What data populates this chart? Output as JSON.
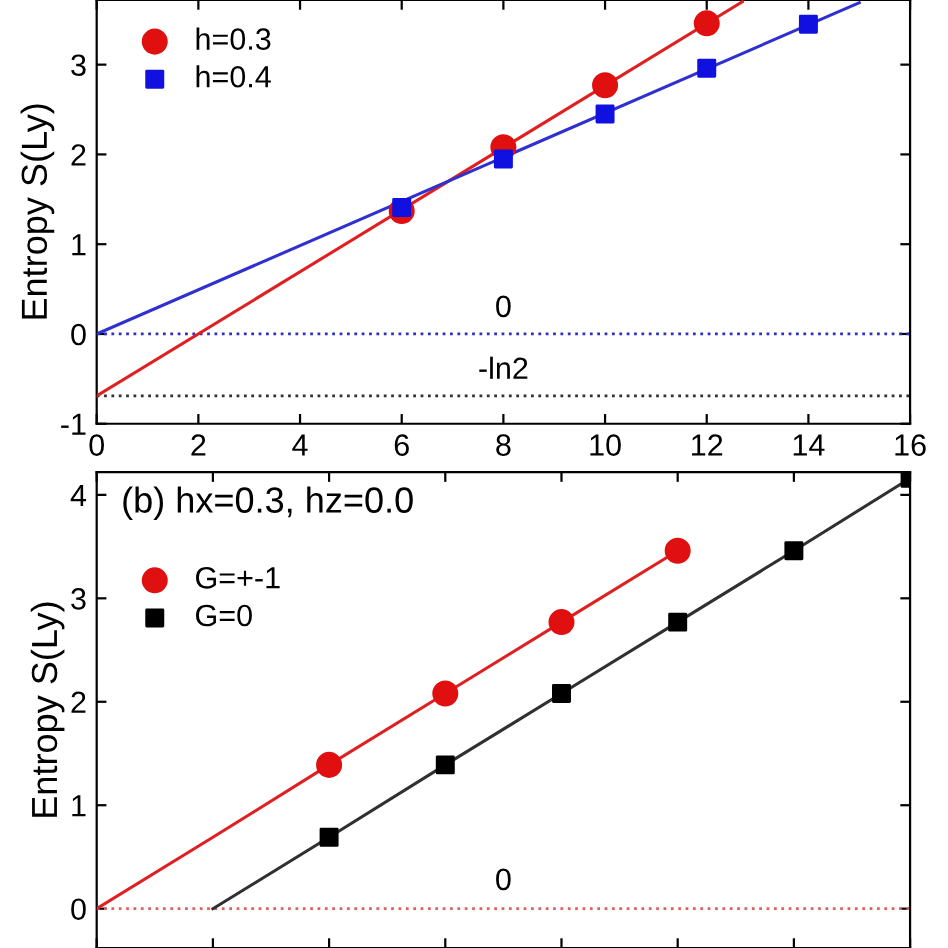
{
  "chart_data": [
    {
      "type": "scatter",
      "ylabel": "Entropy S(Ly)",
      "xlim": [
        0,
        16
      ],
      "xticks": [
        0,
        2,
        4,
        6,
        8,
        10,
        12,
        14,
        16
      ],
      "ylim": [
        -1,
        3.72
      ],
      "yticks": [
        -1,
        0,
        1,
        2,
        3
      ],
      "legend": "top left",
      "grid": false,
      "series": [
        {
          "name": "h=0.3",
          "marker": "circle",
          "color": "#e01010",
          "x": [
            6,
            8,
            10,
            12
          ],
          "values": [
            1.37,
            2.08,
            2.77,
            3.46
          ]
        },
        {
          "name": "h=0.4",
          "marker": "square",
          "color": "#1010e0",
          "x": [
            6,
            8,
            10,
            12,
            14
          ],
          "values": [
            1.41,
            1.95,
            2.45,
            2.96,
            3.45
          ]
        },
        {
          "type": "line",
          "marker": "none",
          "color": "#e02020",
          "x": [
            0,
            12.7
          ],
          "values": [
            -0.69,
            3.7
          ]
        },
        {
          "type": "line",
          "marker": "none",
          "color": "#3030d0",
          "x": [
            0,
            15
          ],
          "values": [
            0,
            3.69
          ]
        }
      ],
      "ref_lines": [
        {
          "axis": "y",
          "value": 0,
          "label": "0",
          "color": "#3030c0",
          "line_style": "dotted"
        },
        {
          "axis": "y",
          "value": -0.69,
          "label": "-ln2",
          "color": "#303030",
          "line_style": "dotted"
        }
      ]
    },
    {
      "type": "scatter",
      "ylabel": "Entropy S(Ly)",
      "categories": [
        null,
        null,
        null,
        null,
        null,
        null,
        null,
        null
      ],
      "ylim": [
        -0.38,
        4.22
      ],
      "yticks": [
        0,
        1,
        2,
        3,
        4
      ],
      "tick_labels": "y",
      "legend": "top left",
      "grid": false,
      "annotations": [
        "(b) hx=0.3, hz=0.0"
      ],
      "series": [
        {
          "name": "G=+-1",
          "marker": "circle",
          "color": "#e01010",
          "values": [
            null,
            null,
            1.39,
            2.08,
            2.77,
            3.46,
            null,
            null
          ]
        },
        {
          "name": "G=0",
          "marker": "square",
          "color": "#000000",
          "values": [
            null,
            null,
            0.69,
            1.39,
            2.08,
            2.77,
            3.46,
            4.16
          ]
        },
        {
          "type": "line",
          "marker": "none",
          "color": "#e02020",
          "values": [
            0,
            0.69,
            1.39,
            2.08,
            2.77,
            3.46,
            null,
            null
          ]
        },
        {
          "type": "line",
          "marker": "none",
          "color": "#303030",
          "values": [
            null,
            0.0,
            0.69,
            1.39,
            2.08,
            2.77,
            3.46,
            4.16
          ]
        }
      ],
      "ref_lines": [
        {
          "axis": "y",
          "value": 0,
          "label": "0",
          "color": "#e06060",
          "line_style": "dotted"
        }
      ]
    }
  ]
}
